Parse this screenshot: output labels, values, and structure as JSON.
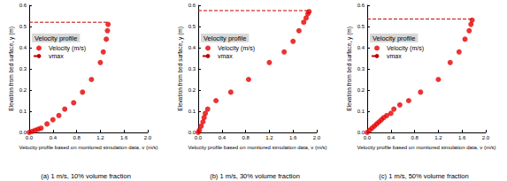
{
  "chart_data": [
    {
      "type": "scatter",
      "title": "(a) 1 m/s, 10% volume fraction",
      "x_label": "Velocity profile based on monitored simulation data, v (m/s)",
      "y_label": "Elevation from bed surface, y (m)",
      "legend_title": "Velocity profile",
      "legend": "upper left",
      "grid": false,
      "xlim": [
        0,
        2
      ],
      "xticks": [
        {
          "value": 0,
          "label": "0.0"
        },
        0.4,
        0.8,
        1.2,
        1.6,
        {
          "value": 2,
          "label": "2.0"
        }
      ],
      "ylim": [
        0,
        0.6
      ],
      "yticks": [
        {
          "value": 0,
          "label": "0.0"
        },
        0.1,
        0.2,
        0.3,
        0.4,
        0.5,
        0.6
      ],
      "series": [
        {
          "name": "Velocity (m/s)",
          "type": "scatter",
          "marker": "circle",
          "color": "#e60000",
          "x": [
            0.0,
            0.05,
            0.1,
            0.15,
            0.2,
            0.3,
            0.4,
            0.5,
            0.6,
            0.75,
            0.9,
            1.05,
            1.2,
            1.25,
            1.3,
            1.32,
            1.33
          ],
          "values": [
            0.0,
            0.005,
            0.01,
            0.015,
            0.02,
            0.04,
            0.06,
            0.08,
            0.11,
            0.14,
            0.19,
            0.25,
            0.33,
            0.38,
            0.44,
            0.48,
            0.51
          ]
        },
        {
          "name": "vmax",
          "type": "line",
          "line_style": "dashed",
          "color": "#c00000",
          "x": [
            0,
            1.33
          ],
          "values": [
            0.52,
            0.52
          ]
        }
      ]
    },
    {
      "type": "scatter",
      "title": "(b) 1 m/s, 30% volume fraction",
      "x_label": "Velocity profile based on monitored simulation data, v (m/s)",
      "y_label": "Elevation from bed surface, y (m)",
      "legend_title": "Velocity profile",
      "legend": "upper left",
      "grid": false,
      "xlim": [
        0,
        2
      ],
      "xticks": [
        {
          "value": 0,
          "label": "0.0"
        },
        0.4,
        0.8,
        1.2,
        1.6,
        {
          "value": 2,
          "label": "2.0"
        }
      ],
      "ylim": [
        0,
        0.6
      ],
      "yticks": [
        {
          "value": 0,
          "label": "0.0"
        },
        0.1,
        0.2,
        0.3,
        0.4,
        0.5,
        0.6
      ],
      "series": [
        {
          "name": "Velocity (m/s)",
          "type": "scatter",
          "marker": "circle",
          "color": "#e60000",
          "x": [
            0.0,
            0.02,
            0.05,
            0.08,
            0.1,
            0.12,
            0.16,
            0.3,
            0.55,
            0.85,
            1.2,
            1.45,
            1.6,
            1.7,
            1.78,
            1.82,
            1.85,
            1.87
          ],
          "values": [
            0.0,
            0.01,
            0.03,
            0.05,
            0.07,
            0.09,
            0.11,
            0.15,
            0.19,
            0.25,
            0.33,
            0.38,
            0.43,
            0.48,
            0.52,
            0.54,
            0.56,
            0.57
          ]
        },
        {
          "name": "vmax",
          "type": "line",
          "line_style": "dashed",
          "color": "#c00000",
          "x": [
            0,
            1.87
          ],
          "values": [
            0.575,
            0.575
          ]
        }
      ]
    },
    {
      "type": "scatter",
      "title": "(c) 1 m/s, 50% volume fraction",
      "x_label": "Velocity profile based on monitored simulation data, v (m/s)",
      "y_label": "Elevation from bed surface, y (m)",
      "legend_title": "Velocity profile",
      "legend": "upper left",
      "grid": false,
      "xlim": [
        0,
        2
      ],
      "xticks": [
        {
          "value": 0,
          "label": "0.0"
        },
        0.4,
        0.8,
        1.2,
        1.6,
        {
          "value": 2,
          "label": "2.0"
        }
      ],
      "ylim": [
        0,
        0.6
      ],
      "yticks": [
        {
          "value": 0,
          "label": "0.0"
        },
        0.1,
        0.2,
        0.3,
        0.4,
        0.5,
        0.6
      ],
      "series": [
        {
          "name": "Velocity (m/s)",
          "type": "scatter",
          "marker": "circle",
          "color": "#e60000",
          "x": [
            0.0,
            0.04,
            0.08,
            0.12,
            0.16,
            0.2,
            0.24,
            0.28,
            0.33,
            0.4,
            0.45,
            0.55,
            0.7,
            0.9,
            1.2,
            1.4,
            1.55,
            1.65,
            1.72,
            1.75,
            1.77
          ],
          "values": [
            0.0,
            0.01,
            0.02,
            0.03,
            0.04,
            0.05,
            0.06,
            0.07,
            0.08,
            0.09,
            0.11,
            0.13,
            0.15,
            0.19,
            0.25,
            0.33,
            0.38,
            0.44,
            0.48,
            0.51,
            0.53
          ]
        },
        {
          "name": "vmax",
          "type": "line",
          "line_style": "dashed",
          "color": "#c00000",
          "x": [
            0,
            1.77
          ],
          "values": [
            0.535,
            0.535
          ]
        }
      ]
    }
  ]
}
